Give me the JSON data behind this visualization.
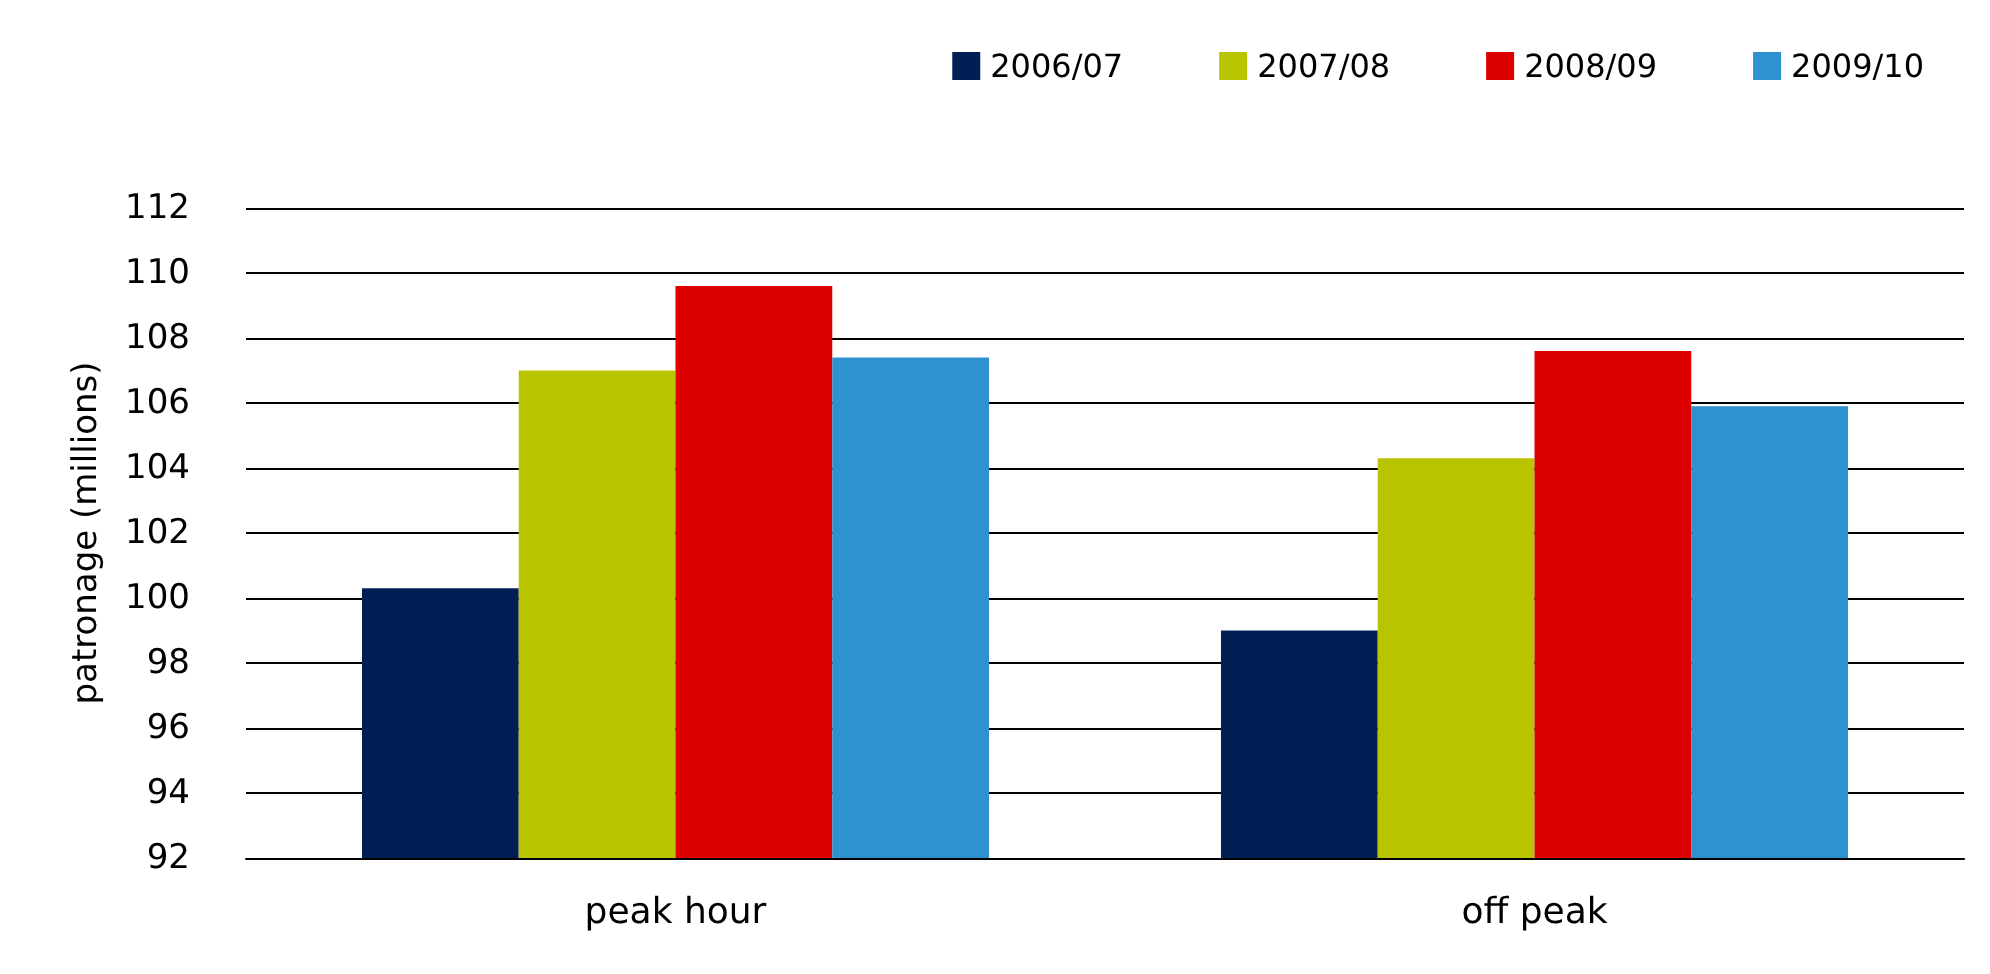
{
  "chart_data": {
    "type": "bar",
    "ylabel": "patronage (millions)",
    "categories": [
      "peak hour",
      "off peak"
    ],
    "series": [
      {
        "name": "2006/07",
        "color": "#001f55",
        "values": [
          100.3,
          99.0
        ]
      },
      {
        "name": "2007/08",
        "color": "#b8c400",
        "values": [
          107.0,
          104.3
        ]
      },
      {
        "name": "2008/09",
        "color": "#dd0000",
        "values": [
          109.6,
          107.6
        ]
      },
      {
        "name": "2009/10",
        "color": "#2e91d0",
        "values": [
          107.4,
          105.9
        ]
      }
    ],
    "ylim": [
      92,
      112
    ],
    "yticks": [
      92,
      94,
      96,
      98,
      100,
      102,
      104,
      106,
      108,
      110,
      112
    ],
    "grid": "y",
    "legend": "top right"
  }
}
